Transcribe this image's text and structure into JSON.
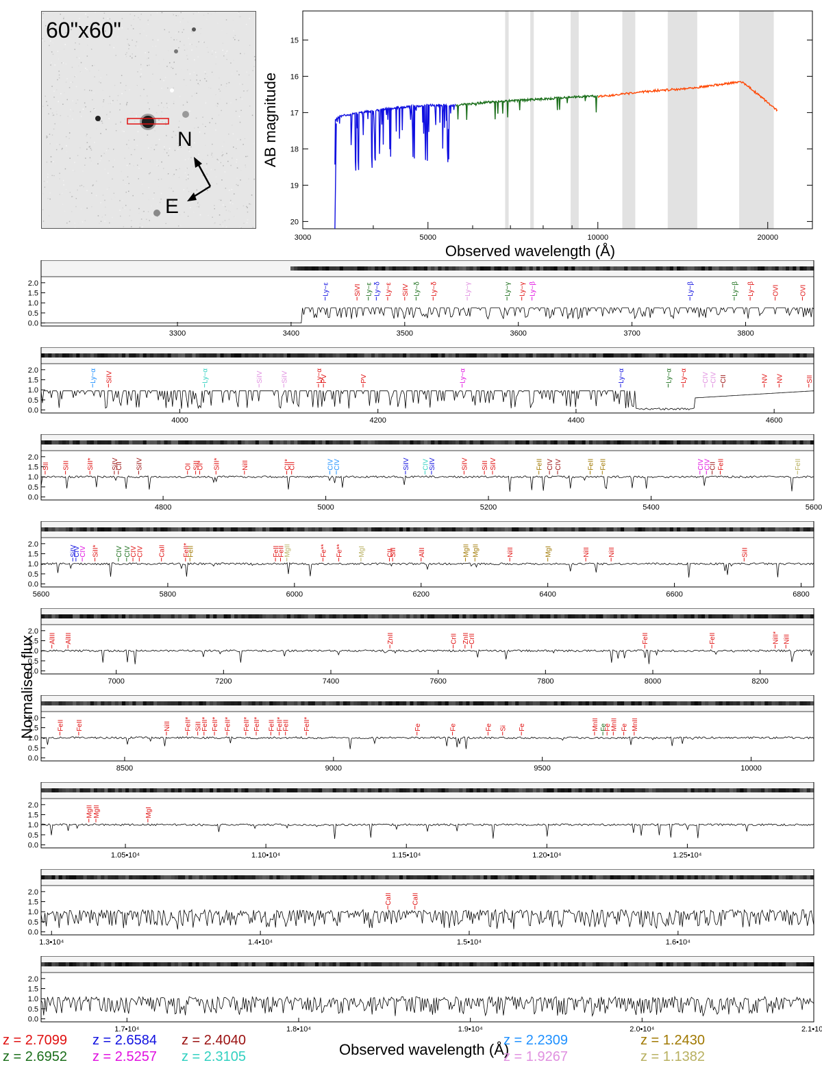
{
  "stamp": {
    "label": "60\"x60\"",
    "north": "N",
    "east": "E"
  },
  "sed": {
    "ylabel": "AB magnitude",
    "xlabel": "Observed wavelength (Å)",
    "xticks": [
      "3000",
      "5000",
      "10000",
      "20000"
    ],
    "yticks": [
      "15",
      "16",
      "17",
      "18",
      "19",
      "20"
    ]
  },
  "global_ylabel": "Normalised flux",
  "global_xlabel": "Observed wavelength (Å)",
  "panel_yticks": [
    "0.0",
    "0.5",
    "1.0",
    "1.5",
    "2.0"
  ],
  "redshifts": [
    {
      "label": "z = 2.7099",
      "color": "#e01010"
    },
    {
      "label": "z = 2.6952",
      "color": "#1a6e1a"
    },
    {
      "label": "z = 2.6584",
      "color": "#1010e0"
    },
    {
      "label": "z = 2.5257",
      "color": "#e010e0"
    },
    {
      "label": "z = 2.4040",
      "color": "#9a1010"
    },
    {
      "label": "z = 2.3105",
      "color": "#30d0c0"
    },
    {
      "label": "z = 2.2309",
      "color": "#1e90ff"
    },
    {
      "label": "z = 1.9267",
      "color": "#e090e0"
    },
    {
      "label": "z = 1.2430",
      "color": "#a07800"
    },
    {
      "label": "z = 1.1382",
      "color": "#b8b060"
    }
  ],
  "chart_data": [
    {
      "type": "line",
      "name": "sed",
      "xlabel": "Observed wavelength (Å)",
      "ylabel": "AB magnitude",
      "xscale": "log",
      "xlim": [
        3000,
        24000
      ],
      "ylim": [
        20.2,
        14.2
      ],
      "series": [
        {
          "arm": "UVB",
          "color": "#1010e0",
          "x": [
            3420,
            3500,
            3800,
            4200,
            4500,
            5000,
            5600
          ],
          "y": [
            17.2,
            17.1,
            17.0,
            16.9,
            16.85,
            16.8,
            16.8
          ]
        },
        {
          "arm": "VIS",
          "color": "#1a6e1a",
          "x": [
            5600,
            6500,
            7500,
            8500,
            9500,
            10000
          ],
          "y": [
            16.8,
            16.7,
            16.65,
            16.6,
            16.55,
            16.55
          ]
        },
        {
          "arm": "NIR",
          "color": "#ff4500",
          "x": [
            10000,
            11000,
            12500,
            14000,
            16000,
            18000,
            20800
          ],
          "y": [
            16.55,
            16.5,
            16.4,
            16.35,
            16.25,
            16.15,
            16.95
          ]
        }
      ],
      "gray_bands": [
        [
          6850,
          6950
        ],
        [
          7590,
          7700
        ],
        [
          8950,
          9250
        ],
        [
          11050,
          11650
        ],
        [
          13300,
          15000
        ],
        [
          17800,
          20500
        ]
      ]
    },
    {
      "type": "line",
      "name": "panel-1",
      "xlim": [
        3180,
        3860
      ],
      "xticks": [
        "3300",
        "3400",
        "3500",
        "3600",
        "3700",
        "3800"
      ],
      "lines": [
        {
          "label": "Ly−ε",
          "x": 3430,
          "color": "#1010e0"
        },
        {
          "label": "SiVI",
          "x": 3458,
          "color": "#e01010"
        },
        {
          "label": "Ly−ε",
          "x": 3468,
          "color": "#1a6e1a"
        },
        {
          "label": "Ly−δ",
          "x": 3475,
          "color": "#1010e0"
        },
        {
          "label": "Ly−ε",
          "x": 3485,
          "color": "#e01010"
        },
        {
          "label": "SiIV",
          "x": 3500,
          "color": "#e01010"
        },
        {
          "label": "Ly−δ",
          "x": 3510,
          "color": "#1a6e1a"
        },
        {
          "label": "Ly−δ",
          "x": 3525,
          "color": "#e01010"
        },
        {
          "label": "Ly−γ",
          "x": 3555,
          "color": "#e090e0"
        },
        {
          "label": "Ly−γ",
          "x": 3590,
          "color": "#1a6e1a"
        },
        {
          "label": "Ly−γ",
          "x": 3603,
          "color": "#e01010"
        },
        {
          "label": "Ly−β",
          "x": 3612,
          "color": "#e010e0"
        },
        {
          "label": "Ly−β",
          "x": 3751,
          "color": "#1010e0"
        },
        {
          "label": "Ly−β",
          "x": 3790,
          "color": "#1a6e1a"
        },
        {
          "label": "Ly−β",
          "x": 3804,
          "color": "#e01010"
        },
        {
          "label": "OVI",
          "x": 3826,
          "color": "#e01010"
        },
        {
          "label": "OVI",
          "x": 3850,
          "color": "#e01010"
        }
      ]
    },
    {
      "type": "line",
      "name": "panel-2",
      "xlim": [
        3860,
        4640
      ],
      "xticks": [
        "4000",
        "4200",
        "4400",
        "4600"
      ],
      "lines": [
        {
          "label": "Ly−α",
          "x": 3912,
          "color": "#1e90ff"
        },
        {
          "label": "SiIV",
          "x": 3928,
          "color": "#e01010"
        },
        {
          "label": "Ly−α",
          "x": 4025,
          "color": "#30d0c0"
        },
        {
          "label": "SiIV",
          "x": 4080,
          "color": "#e090e0"
        },
        {
          "label": "SiIV",
          "x": 4105,
          "color": "#e090e0"
        },
        {
          "label": "Ly−α",
          "x": 4140,
          "color": "#e01010"
        },
        {
          "label": "PV",
          "x": 4145,
          "color": "#e01010"
        },
        {
          "label": "PV",
          "x": 4185,
          "color": "#e01010"
        },
        {
          "label": "Ly−α",
          "x": 4285,
          "color": "#e010e0"
        },
        {
          "label": "Ly−α",
          "x": 4445,
          "color": "#1010e0"
        },
        {
          "label": "Ly−α",
          "x": 4493,
          "color": "#1a6e1a"
        },
        {
          "label": "Ly−α",
          "x": 4508,
          "color": "#e01010"
        },
        {
          "label": "CIV",
          "x": 4530,
          "color": "#e090e0"
        },
        {
          "label": "CIV",
          "x": 4538,
          "color": "#e090e0"
        },
        {
          "label": "CII",
          "x": 4548,
          "color": "#9a1010"
        },
        {
          "label": "NV",
          "x": 4590,
          "color": "#e01010"
        },
        {
          "label": "NV",
          "x": 4605,
          "color": "#e01010"
        },
        {
          "label": "SII",
          "x": 4635,
          "color": "#e01010"
        }
      ]
    },
    {
      "type": "line",
      "name": "panel-3",
      "xlim": [
        4650,
        5600
      ],
      "xticks": [
        "4800",
        "5000",
        "5200",
        "5400",
        "5600"
      ],
      "lines": [
        {
          "label": "SII",
          "x": 4655,
          "color": "#e01010"
        },
        {
          "label": "SiII",
          "x": 4680,
          "color": "#e01010"
        },
        {
          "label": "SiII*",
          "x": 4710,
          "color": "#e01010"
        },
        {
          "label": "SiIV",
          "x": 4740,
          "color": "#9a1010"
        },
        {
          "label": "CII",
          "x": 4745,
          "color": "#9a1010"
        },
        {
          "label": "SiIV",
          "x": 4770,
          "color": "#9a1010"
        },
        {
          "label": "OI",
          "x": 4830,
          "color": "#e01010"
        },
        {
          "label": "SiII",
          "x": 4840,
          "color": "#e01010"
        },
        {
          "label": "OI*",
          "x": 4845,
          "color": "#e01010"
        },
        {
          "label": "SiII*",
          "x": 4865,
          "color": "#e01010"
        },
        {
          "label": "NiII",
          "x": 4900,
          "color": "#e01010"
        },
        {
          "label": "CII*",
          "x": 4952,
          "color": "#e01010"
        },
        {
          "label": "CII",
          "x": 4958,
          "color": "#e01010"
        },
        {
          "label": "CIV",
          "x": 5005,
          "color": "#1e90ff"
        },
        {
          "label": "CIV",
          "x": 5013,
          "color": "#1e90ff"
        },
        {
          "label": "SiIV",
          "x": 5098,
          "color": "#1010e0"
        },
        {
          "label": "CIV",
          "x": 5122,
          "color": "#30d0c0"
        },
        {
          "label": "SiIV",
          "x": 5130,
          "color": "#1010e0"
        },
        {
          "label": "SiIV",
          "x": 5170,
          "color": "#e01010"
        },
        {
          "label": "SiII",
          "x": 5195,
          "color": "#e01010"
        },
        {
          "label": "SiIV",
          "x": 5205,
          "color": "#e01010"
        },
        {
          "label": "FeII",
          "x": 5262,
          "color": "#a07800"
        },
        {
          "label": "CIV",
          "x": 5275,
          "color": "#9a1010"
        },
        {
          "label": "CIV",
          "x": 5285,
          "color": "#9a1010"
        },
        {
          "label": "FeII",
          "x": 5325,
          "color": "#a07800"
        },
        {
          "label": "FeII",
          "x": 5340,
          "color": "#a07800"
        },
        {
          "label": "CIV",
          "x": 5460,
          "color": "#e010e0"
        },
        {
          "label": "CIV",
          "x": 5468,
          "color": "#e010e0"
        },
        {
          "label": "CII",
          "x": 5475,
          "color": "#9a1010"
        },
        {
          "label": "FeII",
          "x": 5485,
          "color": "#e01010"
        },
        {
          "label": "FeII",
          "x": 5580,
          "color": "#b8b060"
        }
      ]
    },
    {
      "type": "line",
      "name": "panel-4",
      "xlim": [
        5600,
        6820
      ],
      "xticks": [
        "5600",
        "5800",
        "6000",
        "6200",
        "6400",
        "6600",
        "6800"
      ],
      "lines": [
        {
          "label": "SiIV",
          "x": 5650,
          "color": "#1010e0"
        },
        {
          "label": "CIV",
          "x": 5655,
          "color": "#1010e0"
        },
        {
          "label": "CIV",
          "x": 5665,
          "color": "#e010e0"
        },
        {
          "label": "SiII*",
          "x": 5685,
          "color": "#e01010"
        },
        {
          "label": "CIV",
          "x": 5722,
          "color": "#1a6e1a"
        },
        {
          "label": "CIV",
          "x": 5735,
          "color": "#1a6e1a"
        },
        {
          "label": "CIV",
          "x": 5745,
          "color": "#e01010"
        },
        {
          "label": "CIV",
          "x": 5755,
          "color": "#e01010"
        },
        {
          "label": "CaII",
          "x": 5790,
          "color": "#e01010"
        },
        {
          "label": "FeII*",
          "x": 5828,
          "color": "#e01010"
        },
        {
          "label": "FeII",
          "x": 5835,
          "color": "#a07800"
        },
        {
          "label": "FeII",
          "x": 5970,
          "color": "#e01010"
        },
        {
          "label": "FeII",
          "x": 5978,
          "color": "#e01010"
        },
        {
          "label": "MgII",
          "x": 5988,
          "color": "#b8b060"
        },
        {
          "label": "Fe**",
          "x": 6045,
          "color": "#e01010"
        },
        {
          "label": "Fe**",
          "x": 6070,
          "color": "#e01010"
        },
        {
          "label": "MgI",
          "x": 6105,
          "color": "#b8b060"
        },
        {
          "label": "CII",
          "x": 6150,
          "color": "#e01010"
        },
        {
          "label": "SiII",
          "x": 6155,
          "color": "#e01010"
        },
        {
          "label": "AlII",
          "x": 6200,
          "color": "#e01010"
        },
        {
          "label": "MgII",
          "x": 6270,
          "color": "#a07800"
        },
        {
          "label": "MgII",
          "x": 6285,
          "color": "#a07800"
        },
        {
          "label": "NiII",
          "x": 6340,
          "color": "#e01010"
        },
        {
          "label": "MgI",
          "x": 6400,
          "color": "#a07800"
        },
        {
          "label": "NiII",
          "x": 6460,
          "color": "#e01010"
        },
        {
          "label": "NiII",
          "x": 6500,
          "color": "#e01010"
        },
        {
          "label": "SiII",
          "x": 6710,
          "color": "#e01010"
        }
      ]
    },
    {
      "type": "line",
      "name": "panel-5",
      "xlim": [
        6860,
        8300
      ],
      "xticks": [
        "7000",
        "7200",
        "7400",
        "7600",
        "7800",
        "8000",
        "8200"
      ],
      "lines": [
        {
          "label": "AlIII",
          "x": 6880,
          "color": "#e01010"
        },
        {
          "label": "AlIII",
          "x": 6910,
          "color": "#e01010"
        },
        {
          "label": "ZnII",
          "x": 7510,
          "color": "#e01010"
        },
        {
          "label": "CrII",
          "x": 7628,
          "color": "#e01010"
        },
        {
          "label": "ZnII",
          "x": 7650,
          "color": "#e01010"
        },
        {
          "label": "CrII",
          "x": 7662,
          "color": "#e01010"
        },
        {
          "label": "FeII",
          "x": 7985,
          "color": "#e01010"
        },
        {
          "label": "FeII",
          "x": 8110,
          "color": "#e01010"
        },
        {
          "label": "NiII*",
          "x": 8228,
          "color": "#e01010"
        },
        {
          "label": "NiII",
          "x": 8248,
          "color": "#e01010"
        }
      ]
    },
    {
      "type": "line",
      "name": "panel-6",
      "xlim": [
        8300,
        10150
      ],
      "xticks": [
        "8500",
        "9000",
        "9500",
        "10000"
      ],
      "lines": [
        {
          "label": "FeII",
          "x": 8345,
          "color": "#e01010"
        },
        {
          "label": "FeII",
          "x": 8390,
          "color": "#e01010"
        },
        {
          "label": "NiII",
          "x": 8600,
          "color": "#e01010"
        },
        {
          "label": "FeII*",
          "x": 8650,
          "color": "#e01010"
        },
        {
          "label": "SiII",
          "x": 8675,
          "color": "#e01010"
        },
        {
          "label": "FeII*",
          "x": 8690,
          "color": "#e01010"
        },
        {
          "label": "FeII*",
          "x": 8715,
          "color": "#e01010"
        },
        {
          "label": "FeII*",
          "x": 8745,
          "color": "#e01010"
        },
        {
          "label": "FeII*",
          "x": 8790,
          "color": "#e01010"
        },
        {
          "label": "FeII*",
          "x": 8815,
          "color": "#e01010"
        },
        {
          "label": "FeII",
          "x": 8850,
          "color": "#e01010"
        },
        {
          "label": "FeII*",
          "x": 8870,
          "color": "#e01010"
        },
        {
          "label": "FeII",
          "x": 8885,
          "color": "#e01010"
        },
        {
          "label": "FeII*",
          "x": 8935,
          "color": "#e01010"
        },
        {
          "label": "Fe",
          "x": 9200,
          "color": "#e01010"
        },
        {
          "label": "Fe",
          "x": 9285,
          "color": "#e01010"
        },
        {
          "label": "Fe",
          "x": 9370,
          "color": "#e01010"
        },
        {
          "label": "Si",
          "x": 9405,
          "color": "#e01010"
        },
        {
          "label": "Fe",
          "x": 9450,
          "color": "#e01010"
        },
        {
          "label": "MnII",
          "x": 9625,
          "color": "#e01010"
        },
        {
          "label": "Fe",
          "x": 9645,
          "color": "#1a6e1a"
        },
        {
          "label": "Fe",
          "x": 9655,
          "color": "#e01010"
        },
        {
          "label": "MnII",
          "x": 9670,
          "color": "#e01010"
        },
        {
          "label": "Fe",
          "x": 9695,
          "color": "#e01010"
        },
        {
          "label": "MnII",
          "x": 9720,
          "color": "#e01010"
        }
      ]
    },
    {
      "type": "line",
      "name": "panel-7",
      "xlim": [
        10200,
        12950
      ],
      "xticks": [
        "1.05•10⁴",
        "1.10•10⁴",
        "1.15•10⁴",
        "1.20•10⁴",
        "1.25•10⁴"
      ],
      "xtick_values": [
        10500,
        11000,
        11500,
        12000,
        12500
      ],
      "lines": [
        {
          "label": "MgII",
          "x": 10370,
          "color": "#e01010"
        },
        {
          "label": "MgII",
          "x": 10395,
          "color": "#e01010"
        },
        {
          "label": "MgI",
          "x": 10580,
          "color": "#e01010"
        }
      ]
    },
    {
      "type": "line",
      "name": "panel-8",
      "xlim": [
        12950,
        16650
      ],
      "xticks": [
        "1.3•10⁴",
        "1.4•10⁴",
        "1.5•10⁴",
        "1.6•10⁴"
      ],
      "xtick_values": [
        13000,
        14000,
        15000,
        16000
      ],
      "lines": [
        {
          "label": "CaII",
          "x": 14610,
          "color": "#e01010"
        },
        {
          "label": "CaII",
          "x": 14740,
          "color": "#e01010"
        }
      ]
    },
    {
      "type": "line",
      "name": "panel-9",
      "xlim": [
        16500,
        21000
      ],
      "xticks": [
        "1.7•10⁴",
        "1.8•10⁴",
        "1.9•10⁴",
        "2.0•10⁴",
        "2.1•10⁴"
      ],
      "xtick_values": [
        17000,
        18000,
        19000,
        20000,
        21000
      ],
      "lines": []
    }
  ]
}
